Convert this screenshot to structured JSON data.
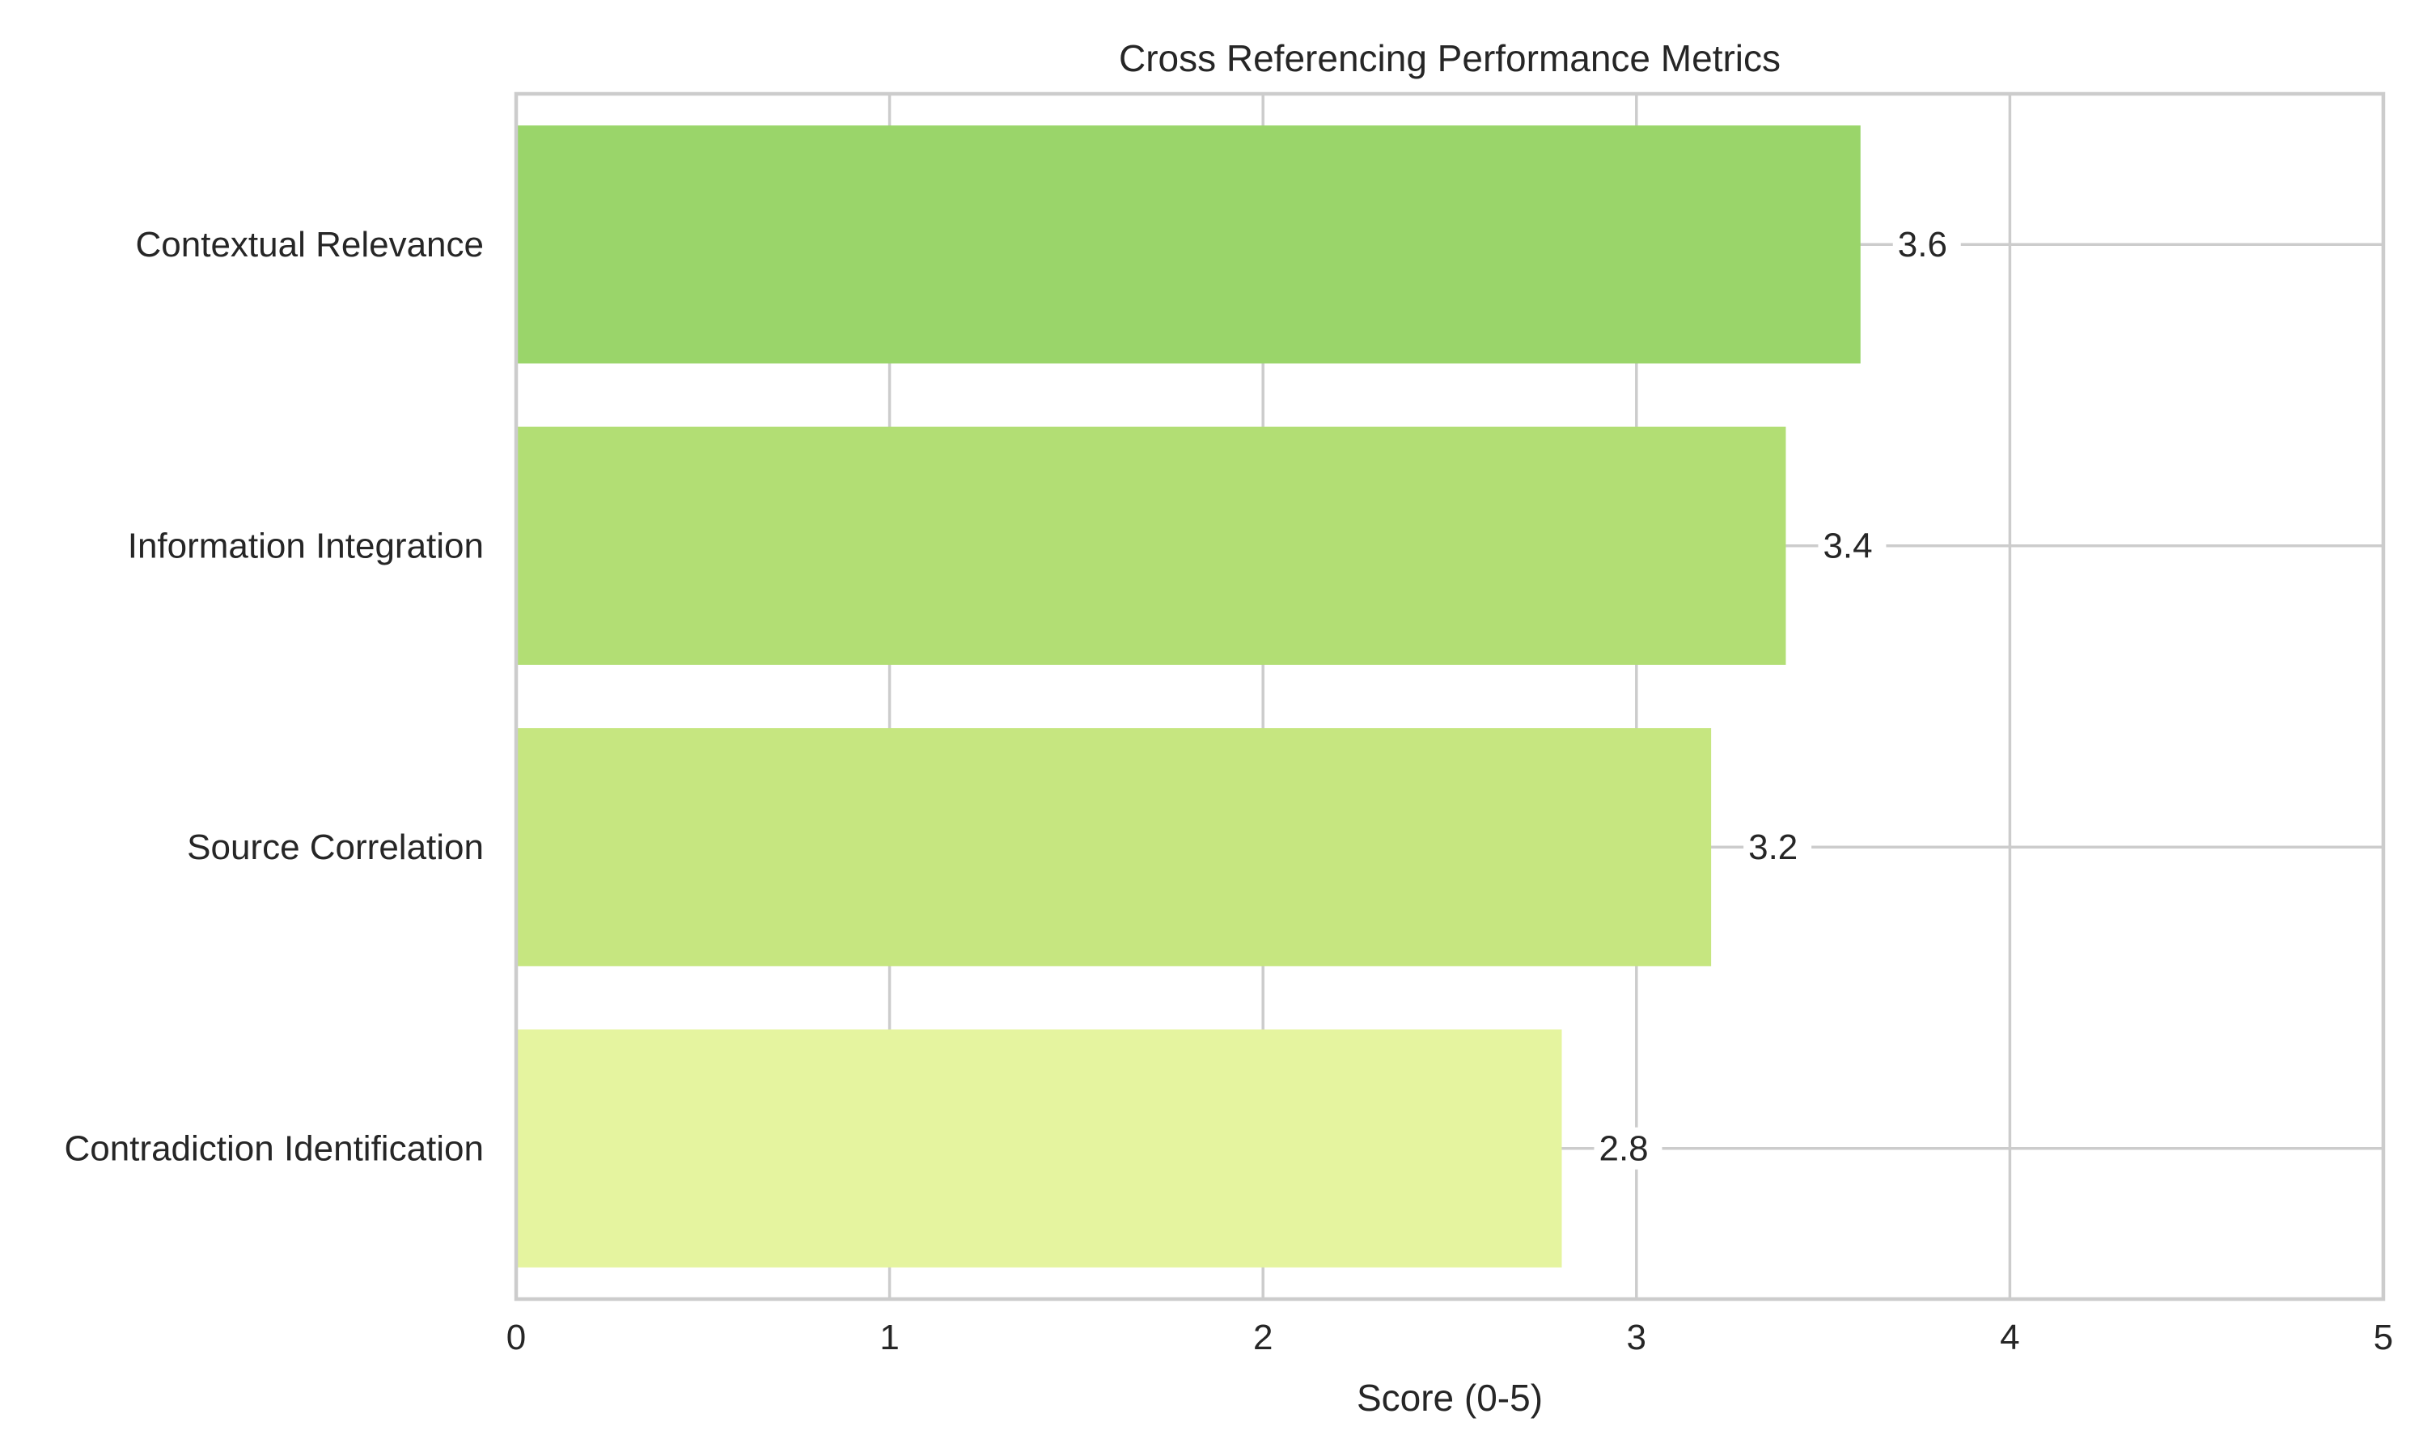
{
  "chart_data": {
    "type": "bar",
    "orientation": "horizontal",
    "title": "Cross Referencing Performance Metrics",
    "xlabel": "Score (0-5)",
    "ylabel": "",
    "xlim": [
      0,
      5
    ],
    "x_ticks": [
      "0",
      "1",
      "2",
      "3",
      "4",
      "5"
    ],
    "grid": true,
    "categories": [
      "Contextual Relevance",
      "Information Integration",
      "Source Correlation",
      "Contradiction Identification"
    ],
    "values": [
      3.6,
      3.4,
      3.2,
      2.8
    ],
    "value_labels": [
      "3.6",
      "3.4",
      "3.2",
      "2.8"
    ],
    "colors": [
      "#9ad56a",
      "#b2de74",
      "#c6e680",
      "#e5f49f"
    ]
  }
}
